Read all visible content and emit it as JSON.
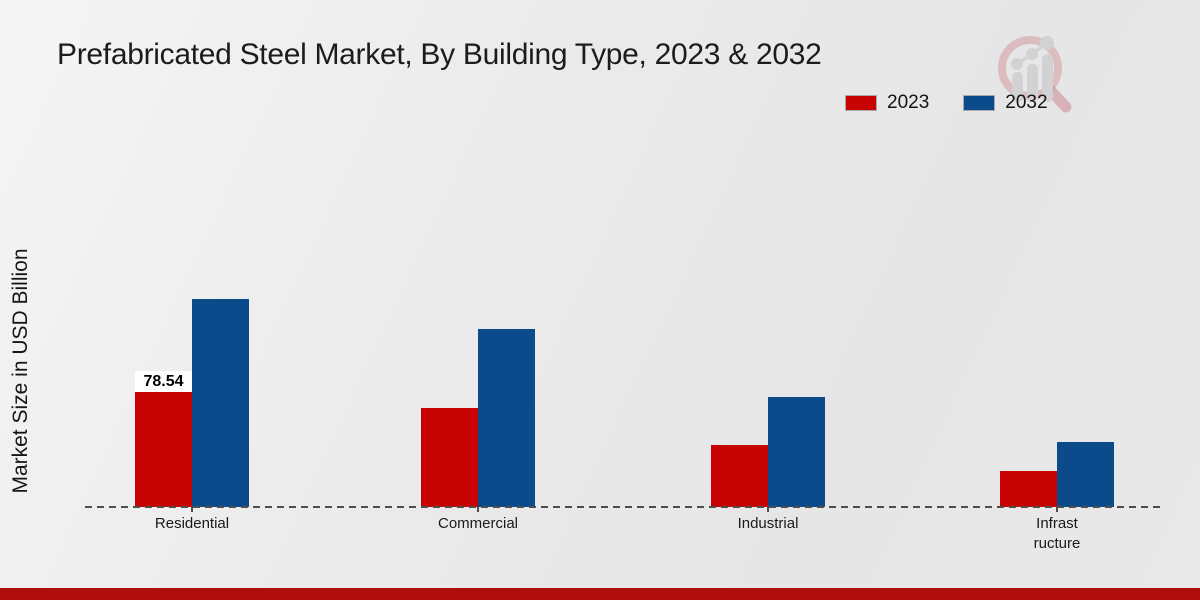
{
  "chart_data": {
    "type": "bar",
    "title": "Prefabricated Steel Market, By Building Type, 2023 & 2032",
    "ylabel": "Market Size in USD Billion",
    "xlabel": "",
    "categories": [
      "Residential",
      "Commercial",
      "Industrial",
      "Infrastructure"
    ],
    "category_display_lines": [
      [
        "Residential"
      ],
      [
        "Commercial"
      ],
      [
        "Industrial"
      ],
      [
        "Infrast",
        "ructure"
      ]
    ],
    "series": [
      {
        "name": "2023",
        "color": "#c70202",
        "values": [
          78.54,
          67.6,
          42.3,
          24.6
        ]
      },
      {
        "name": "2032",
        "color": "#0b4a8b",
        "values": [
          142.1,
          121.6,
          75.1,
          44.4
        ]
      }
    ],
    "bar_labels": [
      {
        "series": "2023",
        "category": "Residential",
        "text": "78.54"
      }
    ],
    "ylim": [
      0,
      160
    ],
    "grid": false,
    "legend_position": "top-right",
    "baseline_style": "dashed"
  },
  "colors": {
    "series_2023_red": "#c70202",
    "series_2032_blue": "#0b4a8b",
    "footer_strip_red": "#b00d0d",
    "background_gray": "#ebebec",
    "baseline_gray": "#4e4e4e"
  },
  "watermark": {
    "icon": "magnifier-bar-chart-logo"
  }
}
